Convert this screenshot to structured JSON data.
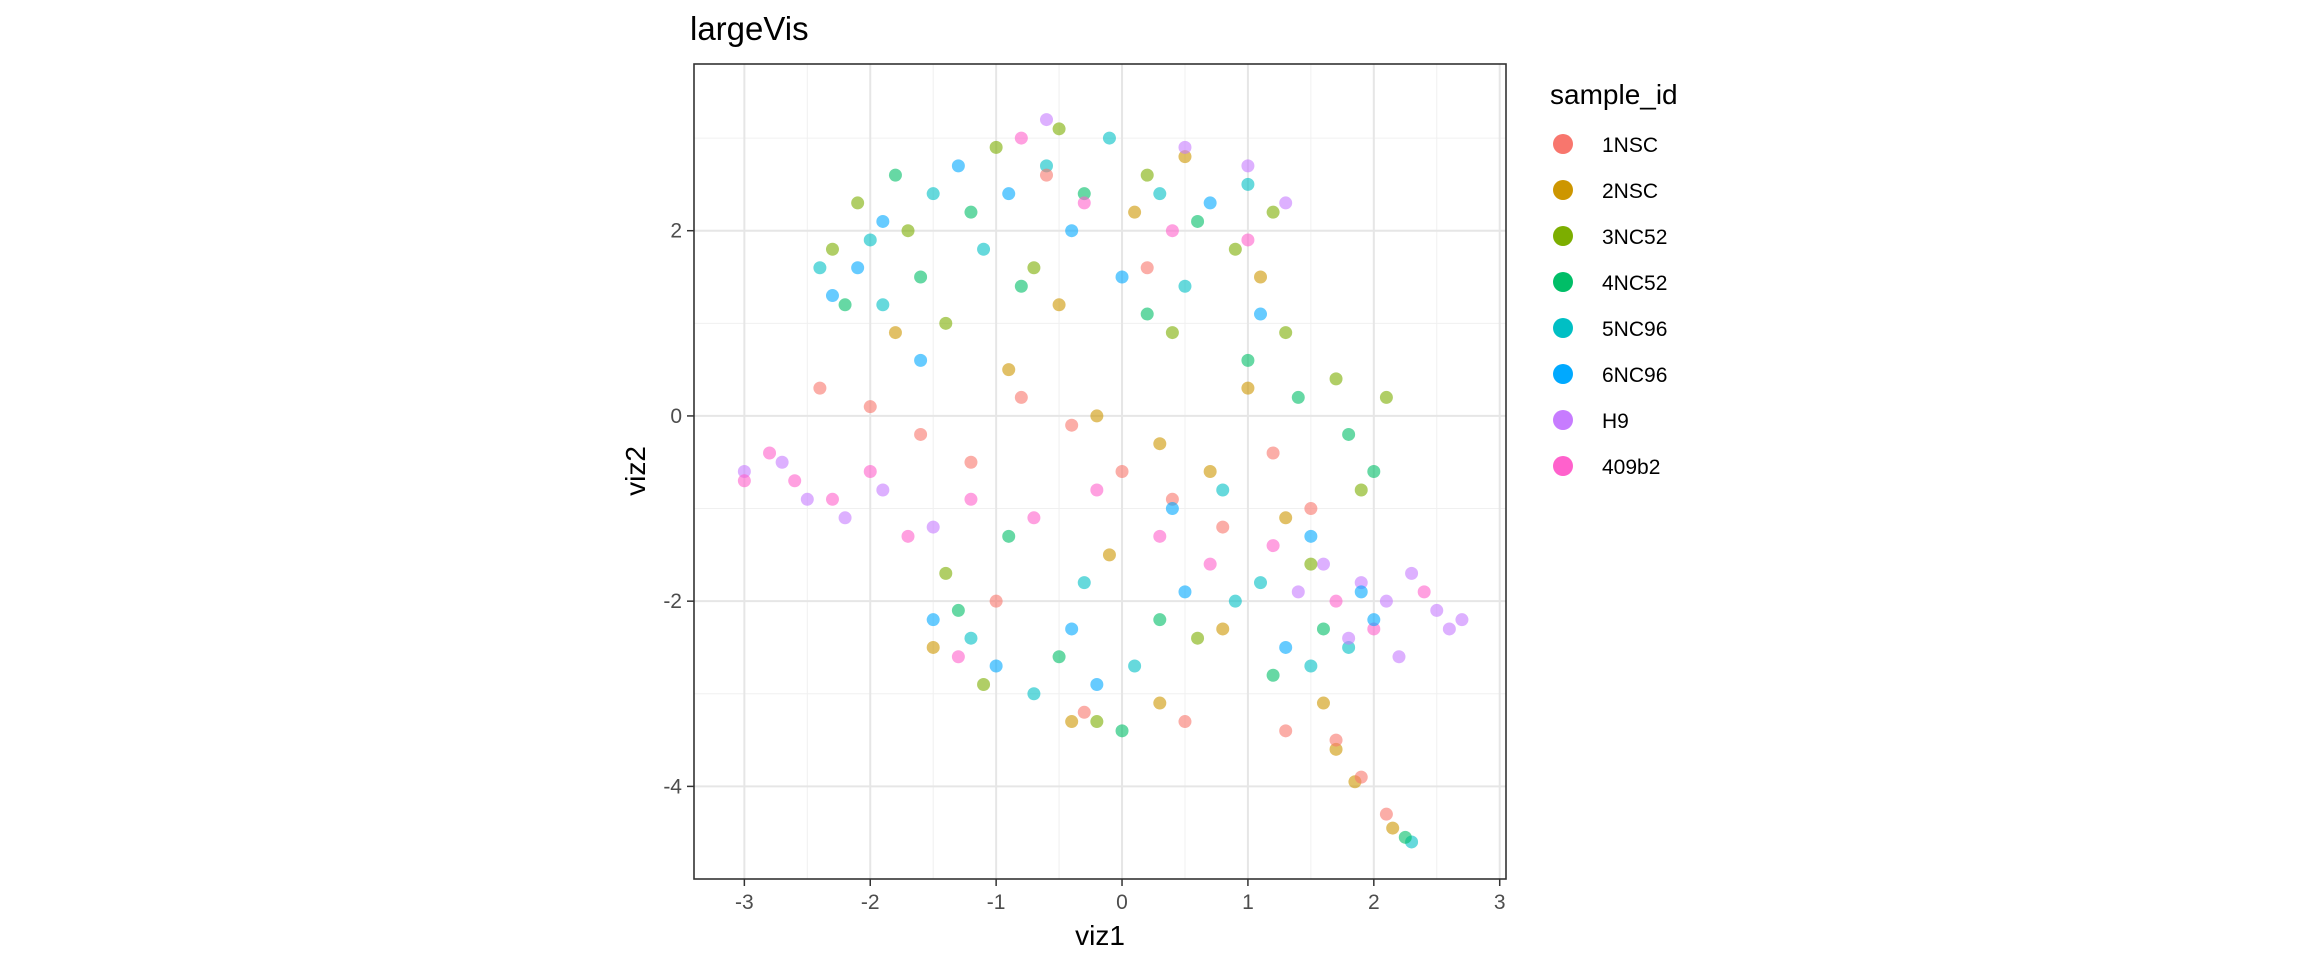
{
  "chart_data": {
    "type": "scatter",
    "title": "largeVis",
    "xlabel": "viz1",
    "ylabel": "viz2",
    "xlim": [
      -3.4,
      3.05
    ],
    "ylim": [
      -5.0,
      3.8
    ],
    "x_ticks": [
      -3,
      -2,
      -1,
      0,
      1,
      2,
      3
    ],
    "y_ticks": [
      -4,
      -2,
      0,
      2
    ],
    "grid": true,
    "legend": {
      "title": "sample_id",
      "position": "right",
      "entries": [
        "1NSC",
        "2NSC",
        "3NC52",
        "4NC52",
        "5NC96",
        "6NC96",
        "H9",
        "409b2"
      ]
    },
    "series": [
      {
        "name": "1NSC",
        "color": "#F8766D",
        "points": [
          [
            -2.4,
            0.3
          ],
          [
            -2.0,
            0.1
          ],
          [
            -1.6,
            -0.2
          ],
          [
            -1.2,
            -0.5
          ],
          [
            -0.8,
            0.2
          ],
          [
            -0.4,
            -0.1
          ],
          [
            0.0,
            -0.6
          ],
          [
            0.4,
            -0.9
          ],
          [
            0.8,
            -1.2
          ],
          [
            1.2,
            -0.4
          ],
          [
            1.5,
            -1.0
          ],
          [
            1.7,
            -3.5
          ],
          [
            1.9,
            -3.9
          ],
          [
            2.1,
            -4.3
          ],
          [
            -0.3,
            -3.2
          ],
          [
            0.5,
            -3.3
          ],
          [
            1.3,
            -3.4
          ],
          [
            -1.0,
            -2.0
          ],
          [
            0.2,
            1.6
          ],
          [
            -0.6,
            2.6
          ]
        ]
      },
      {
        "name": "2NSC",
        "color": "#CD9600",
        "points": [
          [
            -0.2,
            0.0
          ],
          [
            0.3,
            -0.3
          ],
          [
            0.7,
            -0.6
          ],
          [
            -0.5,
            1.2
          ],
          [
            0.1,
            2.2
          ],
          [
            0.5,
            2.8
          ],
          [
            -0.9,
            0.5
          ],
          [
            1.0,
            0.3
          ],
          [
            1.3,
            -1.1
          ],
          [
            1.7,
            -3.6
          ],
          [
            1.85,
            -3.95
          ],
          [
            2.15,
            -4.45
          ],
          [
            0.3,
            -3.1
          ],
          [
            -0.4,
            -3.3
          ],
          [
            1.6,
            -3.1
          ],
          [
            -1.5,
            -2.5
          ],
          [
            0.8,
            -2.3
          ],
          [
            -0.1,
            -1.5
          ],
          [
            1.1,
            1.5
          ],
          [
            -1.8,
            0.9
          ]
        ]
      },
      {
        "name": "3NC52",
        "color": "#7CAE00",
        "points": [
          [
            -2.3,
            1.8
          ],
          [
            -2.1,
            2.3
          ],
          [
            -1.7,
            2.0
          ],
          [
            -1.4,
            1.0
          ],
          [
            -1.0,
            2.9
          ],
          [
            -0.5,
            3.1
          ],
          [
            0.2,
            2.6
          ],
          [
            0.9,
            1.8
          ],
          [
            1.3,
            0.9
          ],
          [
            1.7,
            0.4
          ],
          [
            2.1,
            0.2
          ],
          [
            1.9,
            -0.8
          ],
          [
            1.5,
            -1.6
          ],
          [
            0.6,
            -2.4
          ],
          [
            -0.2,
            -3.3
          ],
          [
            -1.1,
            -2.9
          ],
          [
            -1.4,
            -1.7
          ],
          [
            0.4,
            0.9
          ],
          [
            1.2,
            2.2
          ],
          [
            -0.7,
            1.6
          ]
        ]
      },
      {
        "name": "4NC52",
        "color": "#00BE67",
        "points": [
          [
            -2.2,
            1.2
          ],
          [
            -1.8,
            2.6
          ],
          [
            -1.2,
            2.2
          ],
          [
            -0.8,
            1.4
          ],
          [
            -0.3,
            2.4
          ],
          [
            0.6,
            2.1
          ],
          [
            1.0,
            0.6
          ],
          [
            1.4,
            0.2
          ],
          [
            1.8,
            -0.2
          ],
          [
            2.0,
            -0.6
          ],
          [
            1.6,
            -2.3
          ],
          [
            1.2,
            -2.8
          ],
          [
            0.3,
            -2.2
          ],
          [
            -0.5,
            -2.6
          ],
          [
            -1.3,
            -2.1
          ],
          [
            -0.9,
            -1.3
          ],
          [
            0.0,
            -3.4
          ],
          [
            2.25,
            -4.55
          ],
          [
            0.2,
            1.1
          ],
          [
            -1.6,
            1.5
          ]
        ]
      },
      {
        "name": "5NC96",
        "color": "#00BFC4",
        "points": [
          [
            -2.4,
            1.6
          ],
          [
            -2.0,
            1.9
          ],
          [
            -1.5,
            2.4
          ],
          [
            -1.1,
            1.8
          ],
          [
            -0.6,
            2.7
          ],
          [
            -0.1,
            3.0
          ],
          [
            0.5,
            1.4
          ],
          [
            0.8,
            -0.8
          ],
          [
            1.1,
            -1.8
          ],
          [
            1.5,
            -2.7
          ],
          [
            1.8,
            -2.5
          ],
          [
            0.9,
            -2.0
          ],
          [
            0.1,
            -2.7
          ],
          [
            -0.7,
            -3.0
          ],
          [
            -1.2,
            -2.4
          ],
          [
            -0.3,
            -1.8
          ],
          [
            2.3,
            -4.6
          ],
          [
            0.3,
            2.4
          ],
          [
            -1.9,
            1.2
          ],
          [
            1.0,
            2.5
          ]
        ]
      },
      {
        "name": "6NC96",
        "color": "#00A9FF",
        "points": [
          [
            -2.3,
            1.3
          ],
          [
            -2.1,
            1.6
          ],
          [
            -1.9,
            2.1
          ],
          [
            -1.3,
            2.7
          ],
          [
            -0.9,
            2.4
          ],
          [
            -0.4,
            2.0
          ],
          [
            0.0,
            1.5
          ],
          [
            0.7,
            2.3
          ],
          [
            1.1,
            1.1
          ],
          [
            1.5,
            -1.3
          ],
          [
            1.9,
            -1.9
          ],
          [
            1.3,
            -2.5
          ],
          [
            0.5,
            -1.9
          ],
          [
            -0.4,
            -2.3
          ],
          [
            -1.0,
            -2.7
          ],
          [
            -1.5,
            -2.2
          ],
          [
            -0.2,
            -2.9
          ],
          [
            -1.6,
            0.6
          ],
          [
            0.4,
            -1.0
          ],
          [
            2.0,
            -2.2
          ]
        ]
      },
      {
        "name": "H9",
        "color": "#C77CFF",
        "points": [
          [
            -3.0,
            -0.6
          ],
          [
            -2.7,
            -0.5
          ],
          [
            -2.5,
            -0.9
          ],
          [
            -2.2,
            -1.1
          ],
          [
            -1.9,
            -0.8
          ],
          [
            -1.5,
            -1.2
          ],
          [
            1.6,
            -1.6
          ],
          [
            1.9,
            -1.8
          ],
          [
            2.1,
            -2.0
          ],
          [
            2.3,
            -1.7
          ],
          [
            2.5,
            -2.1
          ],
          [
            2.6,
            -2.3
          ],
          [
            2.2,
            -2.6
          ],
          [
            1.8,
            -2.4
          ],
          [
            1.4,
            -1.9
          ],
          [
            1.0,
            2.7
          ],
          [
            1.3,
            2.3
          ],
          [
            0.5,
            2.9
          ],
          [
            -0.6,
            3.2
          ],
          [
            2.7,
            -2.2
          ]
        ]
      },
      {
        "name": "409b2",
        "color": "#FF61CC",
        "points": [
          [
            -3.0,
            -0.7
          ],
          [
            -2.8,
            -0.4
          ],
          [
            -2.6,
            -0.7
          ],
          [
            -2.3,
            -0.9
          ],
          [
            -2.0,
            -0.6
          ],
          [
            -1.7,
            -1.3
          ],
          [
            -1.2,
            -0.9
          ],
          [
            -0.7,
            -1.1
          ],
          [
            -0.2,
            -0.8
          ],
          [
            0.3,
            -1.3
          ],
          [
            0.7,
            -1.6
          ],
          [
            1.2,
            -1.4
          ],
          [
            1.7,
            -2.0
          ],
          [
            2.0,
            -2.3
          ],
          [
            2.4,
            -1.9
          ],
          [
            -0.8,
            3.0
          ],
          [
            -0.3,
            2.3
          ],
          [
            0.4,
            2.0
          ],
          [
            1.0,
            1.9
          ],
          [
            -1.3,
            -2.6
          ]
        ]
      }
    ]
  }
}
